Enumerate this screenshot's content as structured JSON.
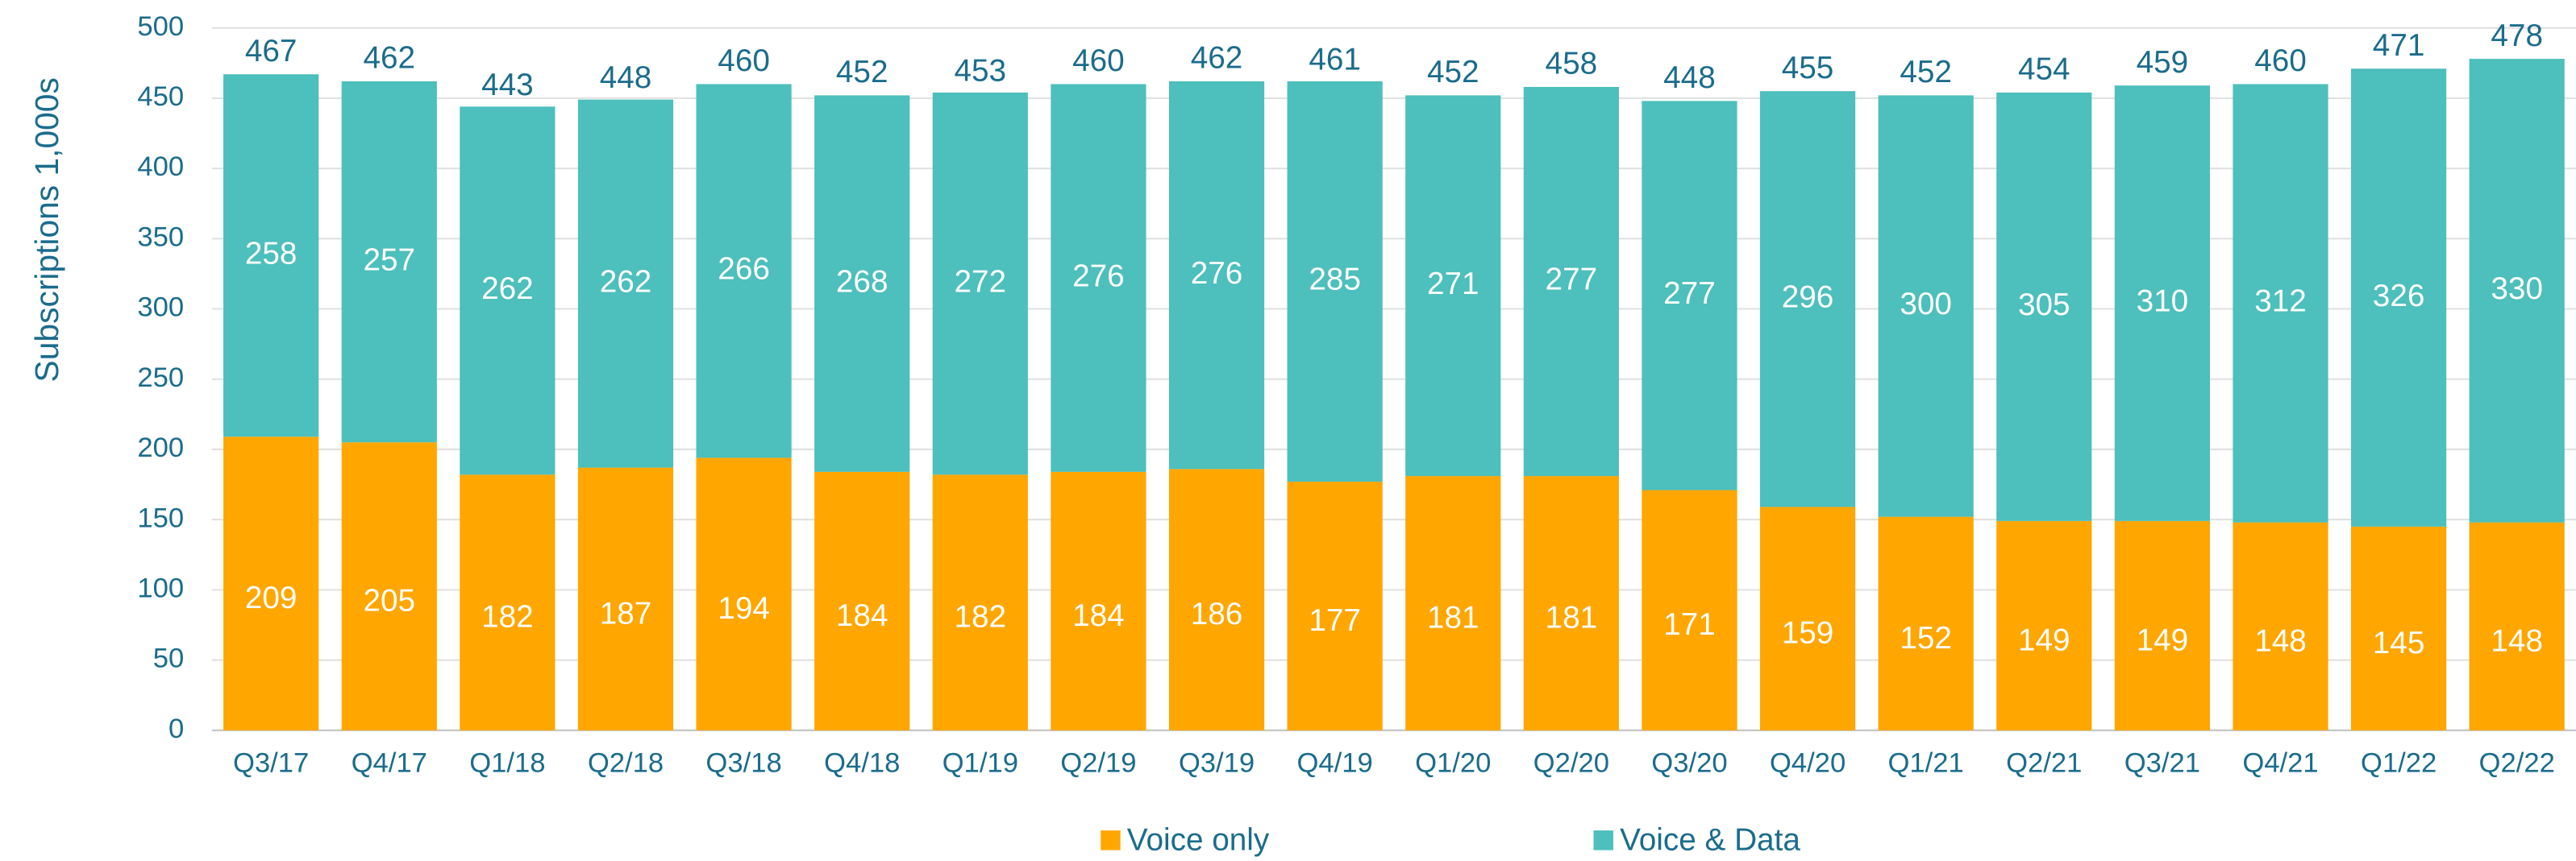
{
  "chart_data": {
    "type": "stacked_bar",
    "y_label": "Subscriptions 1,000s",
    "categories": [
      "Q3/17",
      "Q4/17",
      "Q1/18",
      "Q2/18",
      "Q3/18",
      "Q4/18",
      "Q1/19",
      "Q2/19",
      "Q3/19",
      "Q4/19",
      "Q1/20",
      "Q2/20",
      "Q3/20",
      "Q4/20",
      "Q1/21",
      "Q2/21",
      "Q3/21",
      "Q4/21",
      "Q1/22",
      "Q2/22"
    ],
    "series": [
      {
        "name": "Voice only",
        "color": "#ffa600",
        "values": [
          209,
          205,
          182,
          187,
          194,
          184,
          182,
          184,
          186,
          177,
          181,
          181,
          171,
          159,
          152,
          149,
          149,
          148,
          145,
          148
        ]
      },
      {
        "name": "Voice & Data",
        "color": "#4dbfbc",
        "values": [
          258,
          257,
          262,
          262,
          266,
          268,
          272,
          276,
          276,
          285,
          271,
          277,
          277,
          296,
          300,
          305,
          310,
          312,
          326,
          330
        ]
      }
    ],
    "totals": [
      467,
      462,
      443,
      448,
      460,
      452,
      453,
      460,
      462,
      461,
      452,
      458,
      448,
      455,
      452,
      454,
      459,
      460,
      471,
      478
    ],
    "ylim": [
      0,
      500
    ],
    "yticks": [
      0,
      50,
      100,
      150,
      200,
      250,
      300,
      350,
      400,
      450,
      500
    ],
    "grid": true,
    "legend": "bottom"
  }
}
